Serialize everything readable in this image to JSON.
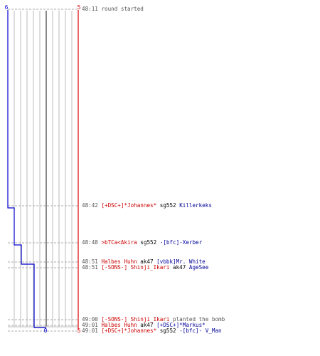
{
  "chart_data": {
    "type": "line",
    "title": "",
    "xlabel": "",
    "ylabel": "",
    "axis_labels": {
      "left_top": "6",
      "right_top": "5",
      "left_bottom": "0",
      "right_bottom": "5"
    },
    "series": [
      {
        "color": "#0000cc",
        "times": [
          "48:11",
          "48:42",
          "48:48",
          "48:51",
          "48:51",
          "49:01",
          "49:01"
        ],
        "values": [
          6,
          5,
          4,
          3,
          2,
          1,
          0
        ]
      },
      {
        "color": "#dd0000",
        "times": [
          "48:11",
          "49:01"
        ],
        "values": [
          5,
          5
        ]
      }
    ]
  },
  "events": [
    {
      "time": "48:11",
      "parts": [
        {
          "text": "round started",
          "role": "neutral"
        }
      ]
    },
    {
      "time": "48:42",
      "parts": [
        {
          "text": "[+DSC+]*Johannes*",
          "role": "red"
        },
        {
          "text": " sg552 ",
          "role": "weapon"
        },
        {
          "text": "Killerkeks",
          "role": "blue"
        }
      ]
    },
    {
      "time": "48:48",
      "parts": [
        {
          "text": ">bTCa<Akira",
          "role": "red"
        },
        {
          "text": " sg552 ",
          "role": "weapon"
        },
        {
          "text": "-[bfc]-Xerber",
          "role": "blue"
        }
      ]
    },
    {
      "time": "48:51",
      "parts": [
        {
          "text": "Halbes Huhn",
          "role": "red"
        },
        {
          "text": " ak47 ",
          "role": "weapon"
        },
        {
          "text": "[vbbk]Mr. White",
          "role": "blue"
        }
      ]
    },
    {
      "time": "48:51",
      "parts": [
        {
          "text": "[-SONS-] Shinji_Ikari",
          "role": "red"
        },
        {
          "text": " ak47 ",
          "role": "weapon"
        },
        {
          "text": "AgeSee",
          "role": "blue"
        }
      ]
    },
    {
      "time": "49:00",
      "parts": [
        {
          "text": "[-SONS-] Shinji_Ikari",
          "role": "red"
        },
        {
          "text": " planted the bomb",
          "role": "neutral"
        }
      ]
    },
    {
      "time": "49:01",
      "parts": [
        {
          "text": "Halbes Huhn",
          "role": "red"
        },
        {
          "text": " ak47 ",
          "role": "weapon"
        },
        {
          "text": "[+DSC+]*Markus*",
          "role": "blue"
        }
      ]
    },
    {
      "time": "49:01",
      "parts": [
        {
          "text": "[+DSC+]*Johannes*",
          "role": "red"
        },
        {
          "text": " sg552 ",
          "role": "weapon"
        },
        {
          "text": "-[bfc]- V_Man",
          "role": "blue"
        }
      ]
    }
  ],
  "colors": {
    "red_team": "#cc0000",
    "blue_team": "#000099",
    "time": "#555555",
    "weapon": "#000000",
    "neutral": "#555555",
    "grid": "#bbbbbb",
    "center_line": "#555555",
    "dash": "#aaaaaa"
  }
}
